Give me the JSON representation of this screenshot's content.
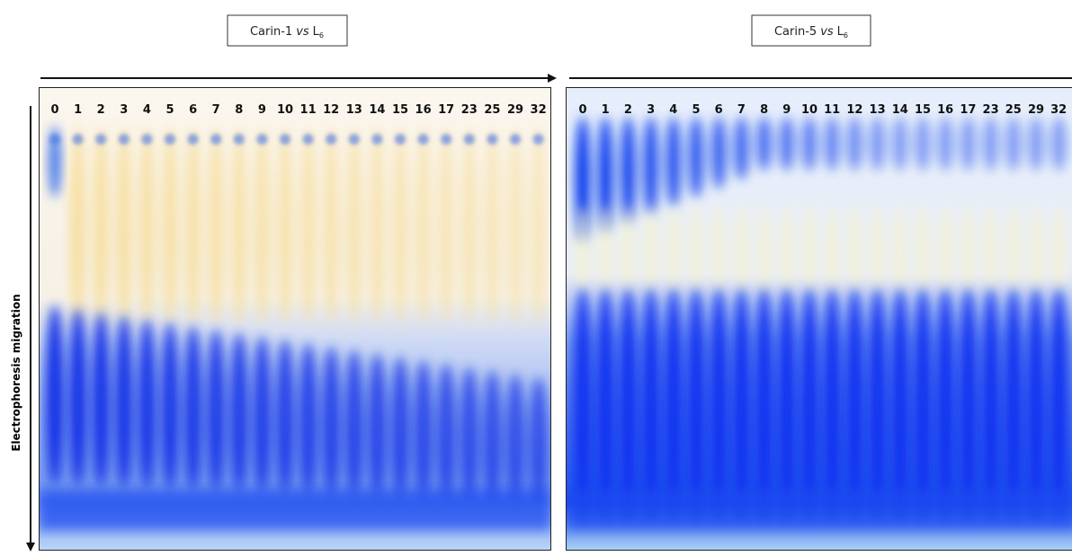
{
  "axis_label": "Electrophoresis migration",
  "panels": [
    {
      "title": {
        "name": "Carin-1",
        "vs": "vs",
        "ligand": "L",
        "subscript": "6"
      },
      "lanes": [
        "0",
        "1",
        "2",
        "3",
        "4",
        "5",
        "6",
        "7",
        "8",
        "9",
        "10",
        "11",
        "12",
        "13",
        "14",
        "15",
        "16",
        "17",
        "23",
        "25",
        "29",
        "32"
      ]
    },
    {
      "title": {
        "name": "Carin-5",
        "vs": "vs",
        "ligand": "L",
        "subscript": "6"
      },
      "lanes": [
        "0",
        "1",
        "2",
        "3",
        "4",
        "5",
        "6",
        "7",
        "8",
        "9",
        "10",
        "11",
        "12",
        "13",
        "14",
        "15",
        "16",
        "17",
        "23",
        "25",
        "29",
        "32"
      ]
    }
  ]
}
